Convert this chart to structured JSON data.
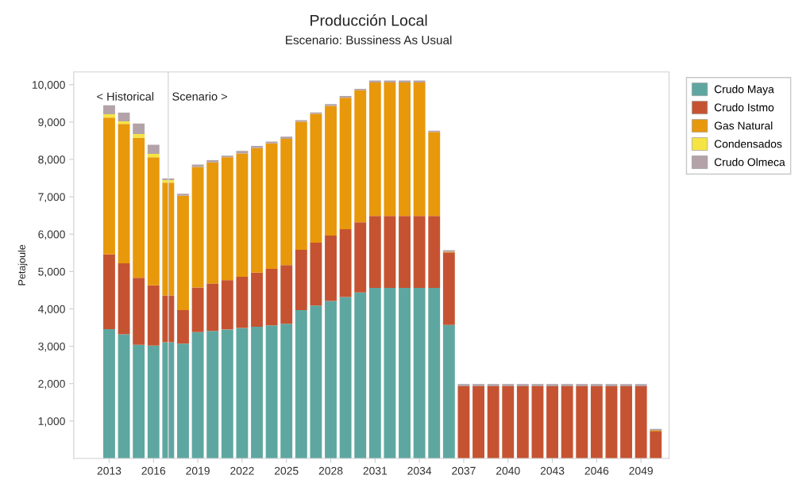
{
  "chart_data": {
    "type": "bar",
    "title": "Producción Local",
    "subtitle": "Escenario: Bussiness As Usual",
    "ylabel": "Petajoule",
    "stacked": true,
    "x": [
      2013,
      2014,
      2015,
      2016,
      2017,
      2018,
      2019,
      2020,
      2021,
      2022,
      2023,
      2024,
      2025,
      2026,
      2027,
      2028,
      2029,
      2030,
      2031,
      2032,
      2033,
      2034,
      2035,
      2036,
      2037,
      2038,
      2039,
      2040,
      2041,
      2042,
      2043,
      2044,
      2045,
      2046,
      2047,
      2048,
      2049,
      2050
    ],
    "series": [
      {
        "name": "Crudo Maya",
        "color": "#5ea7a1",
        "values": [
          3460,
          3320,
          3040,
          3020,
          3110,
          3070,
          3380,
          3410,
          3450,
          3490,
          3520,
          3560,
          3600,
          3970,
          4090,
          4210,
          4320,
          4440,
          4560,
          4560,
          4560,
          4560,
          4560,
          3570,
          0,
          0,
          0,
          0,
          0,
          0,
          0,
          0,
          0,
          0,
          0,
          0,
          0,
          0
        ]
      },
      {
        "name": "Crudo Istmo",
        "color": "#c55332",
        "values": [
          2000,
          1900,
          1790,
          1610,
          1250,
          900,
          1190,
          1270,
          1320,
          1370,
          1450,
          1510,
          1570,
          1610,
          1680,
          1750,
          1810,
          1880,
          1930,
          1930,
          1930,
          1930,
          1930,
          1940,
          1930,
          1930,
          1930,
          1930,
          1930,
          1930,
          1930,
          1930,
          1930,
          1930,
          1930,
          1930,
          1930,
          720
        ]
      },
      {
        "name": "Gas Natural",
        "color": "#e8980b",
        "values": [
          3660,
          3730,
          3750,
          3430,
          3020,
          3060,
          3230,
          3240,
          3290,
          3300,
          3330,
          3360,
          3380,
          3430,
          3450,
          3470,
          3520,
          3530,
          3570,
          3570,
          3570,
          3570,
          2240,
          20,
          0,
          0,
          0,
          0,
          0,
          0,
          0,
          0,
          0,
          0,
          0,
          0,
          0,
          20
        ]
      },
      {
        "name": "Condensados",
        "color": "#f5e444",
        "values": [
          90,
          70,
          100,
          90,
          70,
          0,
          0,
          0,
          0,
          0,
          0,
          0,
          0,
          0,
          0,
          0,
          0,
          0,
          0,
          0,
          0,
          0,
          0,
          0,
          0,
          0,
          0,
          0,
          0,
          0,
          0,
          0,
          0,
          0,
          0,
          0,
          0,
          0
        ]
      },
      {
        "name": "Crudo Olmeca",
        "color": "#b3a3a8",
        "values": [
          240,
          230,
          280,
          240,
          40,
          50,
          60,
          60,
          40,
          70,
          60,
          50,
          60,
          40,
          40,
          50,
          50,
          40,
          50,
          50,
          50,
          50,
          40,
          40,
          60,
          60,
          60,
          60,
          60,
          60,
          60,
          60,
          60,
          60,
          60,
          60,
          60,
          50
        ]
      }
    ],
    "xlim": [
      2010.6,
      2050.9
    ],
    "xticks": [
      2013,
      2016,
      2019,
      2022,
      2025,
      2028,
      2031,
      2034,
      2037,
      2040,
      2043,
      2046,
      2049
    ],
    "ylim": [
      0,
      10340
    ],
    "yticks": [
      {
        "value": 1000,
        "label": "1,000"
      },
      {
        "value": 2000,
        "label": "2,000"
      },
      {
        "value": 3000,
        "label": "3,000"
      },
      {
        "value": 4000,
        "label": "4,000"
      },
      {
        "value": 5000,
        "label": "5,000"
      },
      {
        "value": 6000,
        "label": "6,000"
      },
      {
        "value": 7000,
        "label": "7,000"
      },
      {
        "value": 8000,
        "label": "8,000"
      },
      {
        "value": 9000,
        "label": "9,000"
      },
      {
        "value": 10000,
        "label": "10,000"
      }
    ],
    "ref_lines": [
      {
        "axis": "x",
        "value": 2017,
        "color": "#d9d9d9"
      }
    ],
    "annotations": [
      "< Historical",
      "Scenario >"
    ],
    "grid": false,
    "legend": "top right"
  }
}
